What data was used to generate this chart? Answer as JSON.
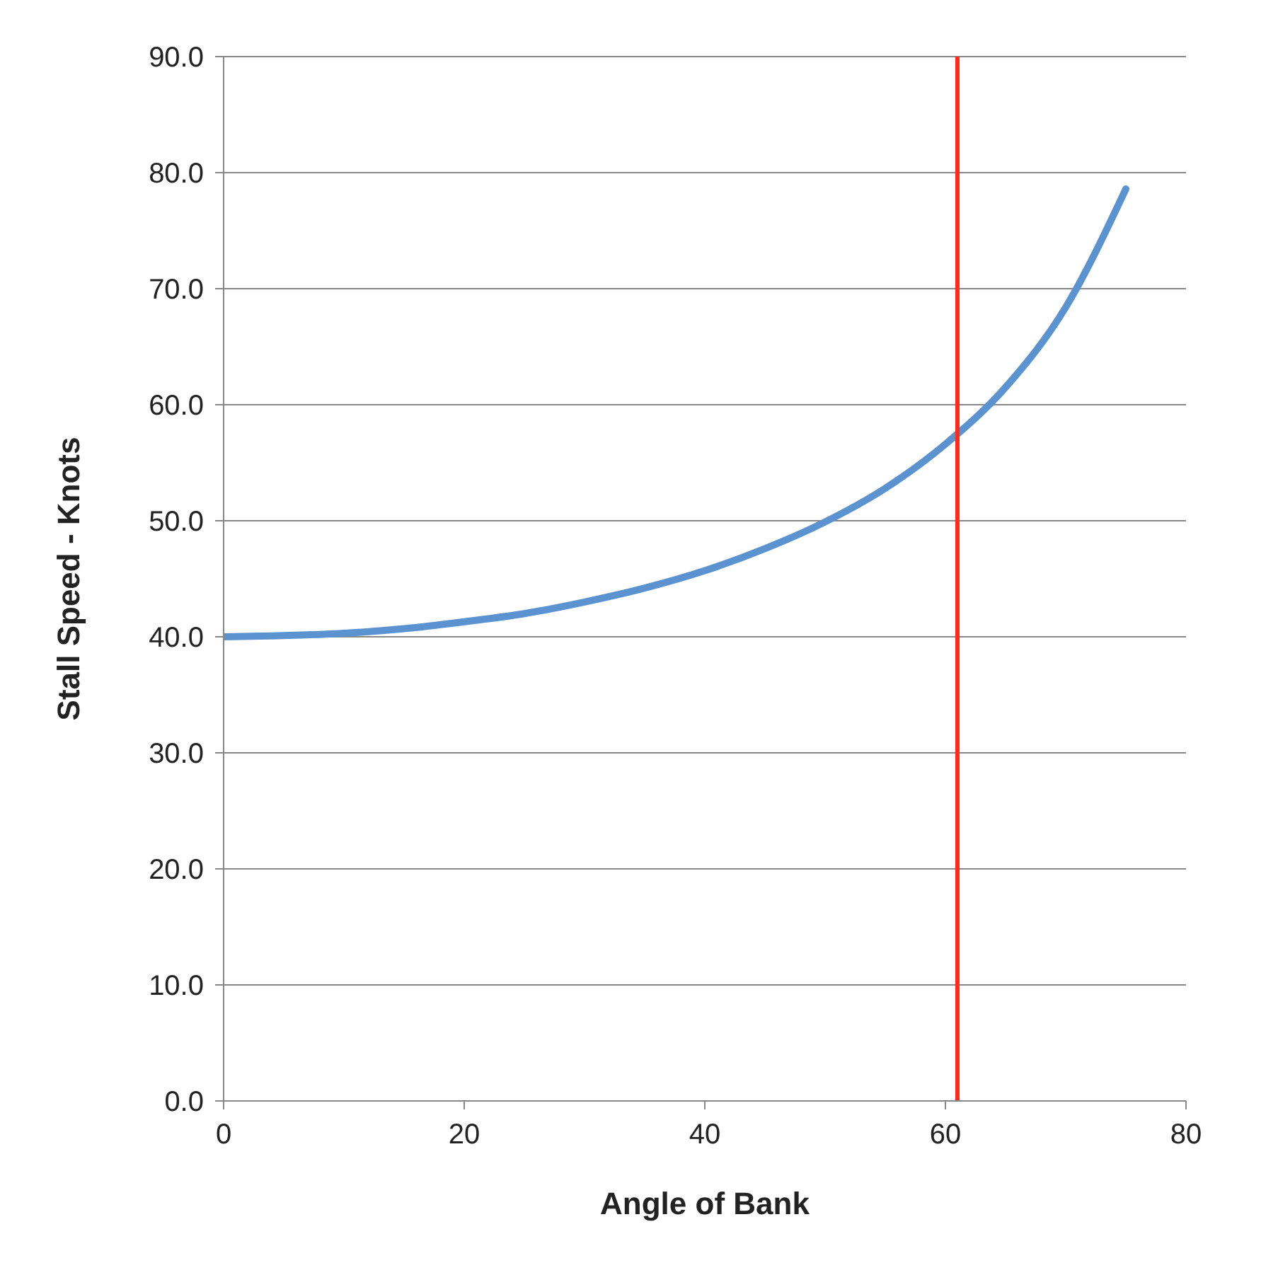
{
  "chart_data": {
    "type": "line",
    "xlabel": "Angle of Bank",
    "ylabel": "Stall Speed - Knots",
    "x": [
      0,
      5,
      10,
      15,
      20,
      25,
      30,
      35,
      40,
      45,
      50,
      55,
      60,
      65,
      70,
      75
    ],
    "series": [
      {
        "color": "#5b93d0",
        "values": [
          40,
          40.1,
          40.3,
          40.7,
          41.3,
          42,
          43,
          44.2,
          45.7,
          47.6,
          49.9,
          52.8,
          56.6,
          61.5,
          68.4,
          78.6
        ]
      }
    ],
    "xlim": [
      0,
      80
    ],
    "xticks": [
      0,
      20,
      40,
      60,
      80
    ],
    "ylim": [
      0,
      90
    ],
    "yticks": [
      {
        "value": 0,
        "label": "0.0"
      },
      {
        "value": 10,
        "label": "10.0"
      },
      {
        "value": 20,
        "label": "20.0"
      },
      {
        "value": 30,
        "label": "30.0"
      },
      {
        "value": 40,
        "label": "40.0"
      },
      {
        "value": 50,
        "label": "50.0"
      },
      {
        "value": 60,
        "label": "60.0"
      },
      {
        "value": 70,
        "label": "70.0"
      },
      {
        "value": 80,
        "label": "80.0"
      },
      {
        "value": 90,
        "label": "90.0"
      }
    ],
    "grid": "y",
    "marker": "none",
    "line_style": "solid",
    "legend": false,
    "ref_lines": [
      {
        "axis": "x",
        "value": 61,
        "color": "#ff2a1a"
      }
    ]
  }
}
